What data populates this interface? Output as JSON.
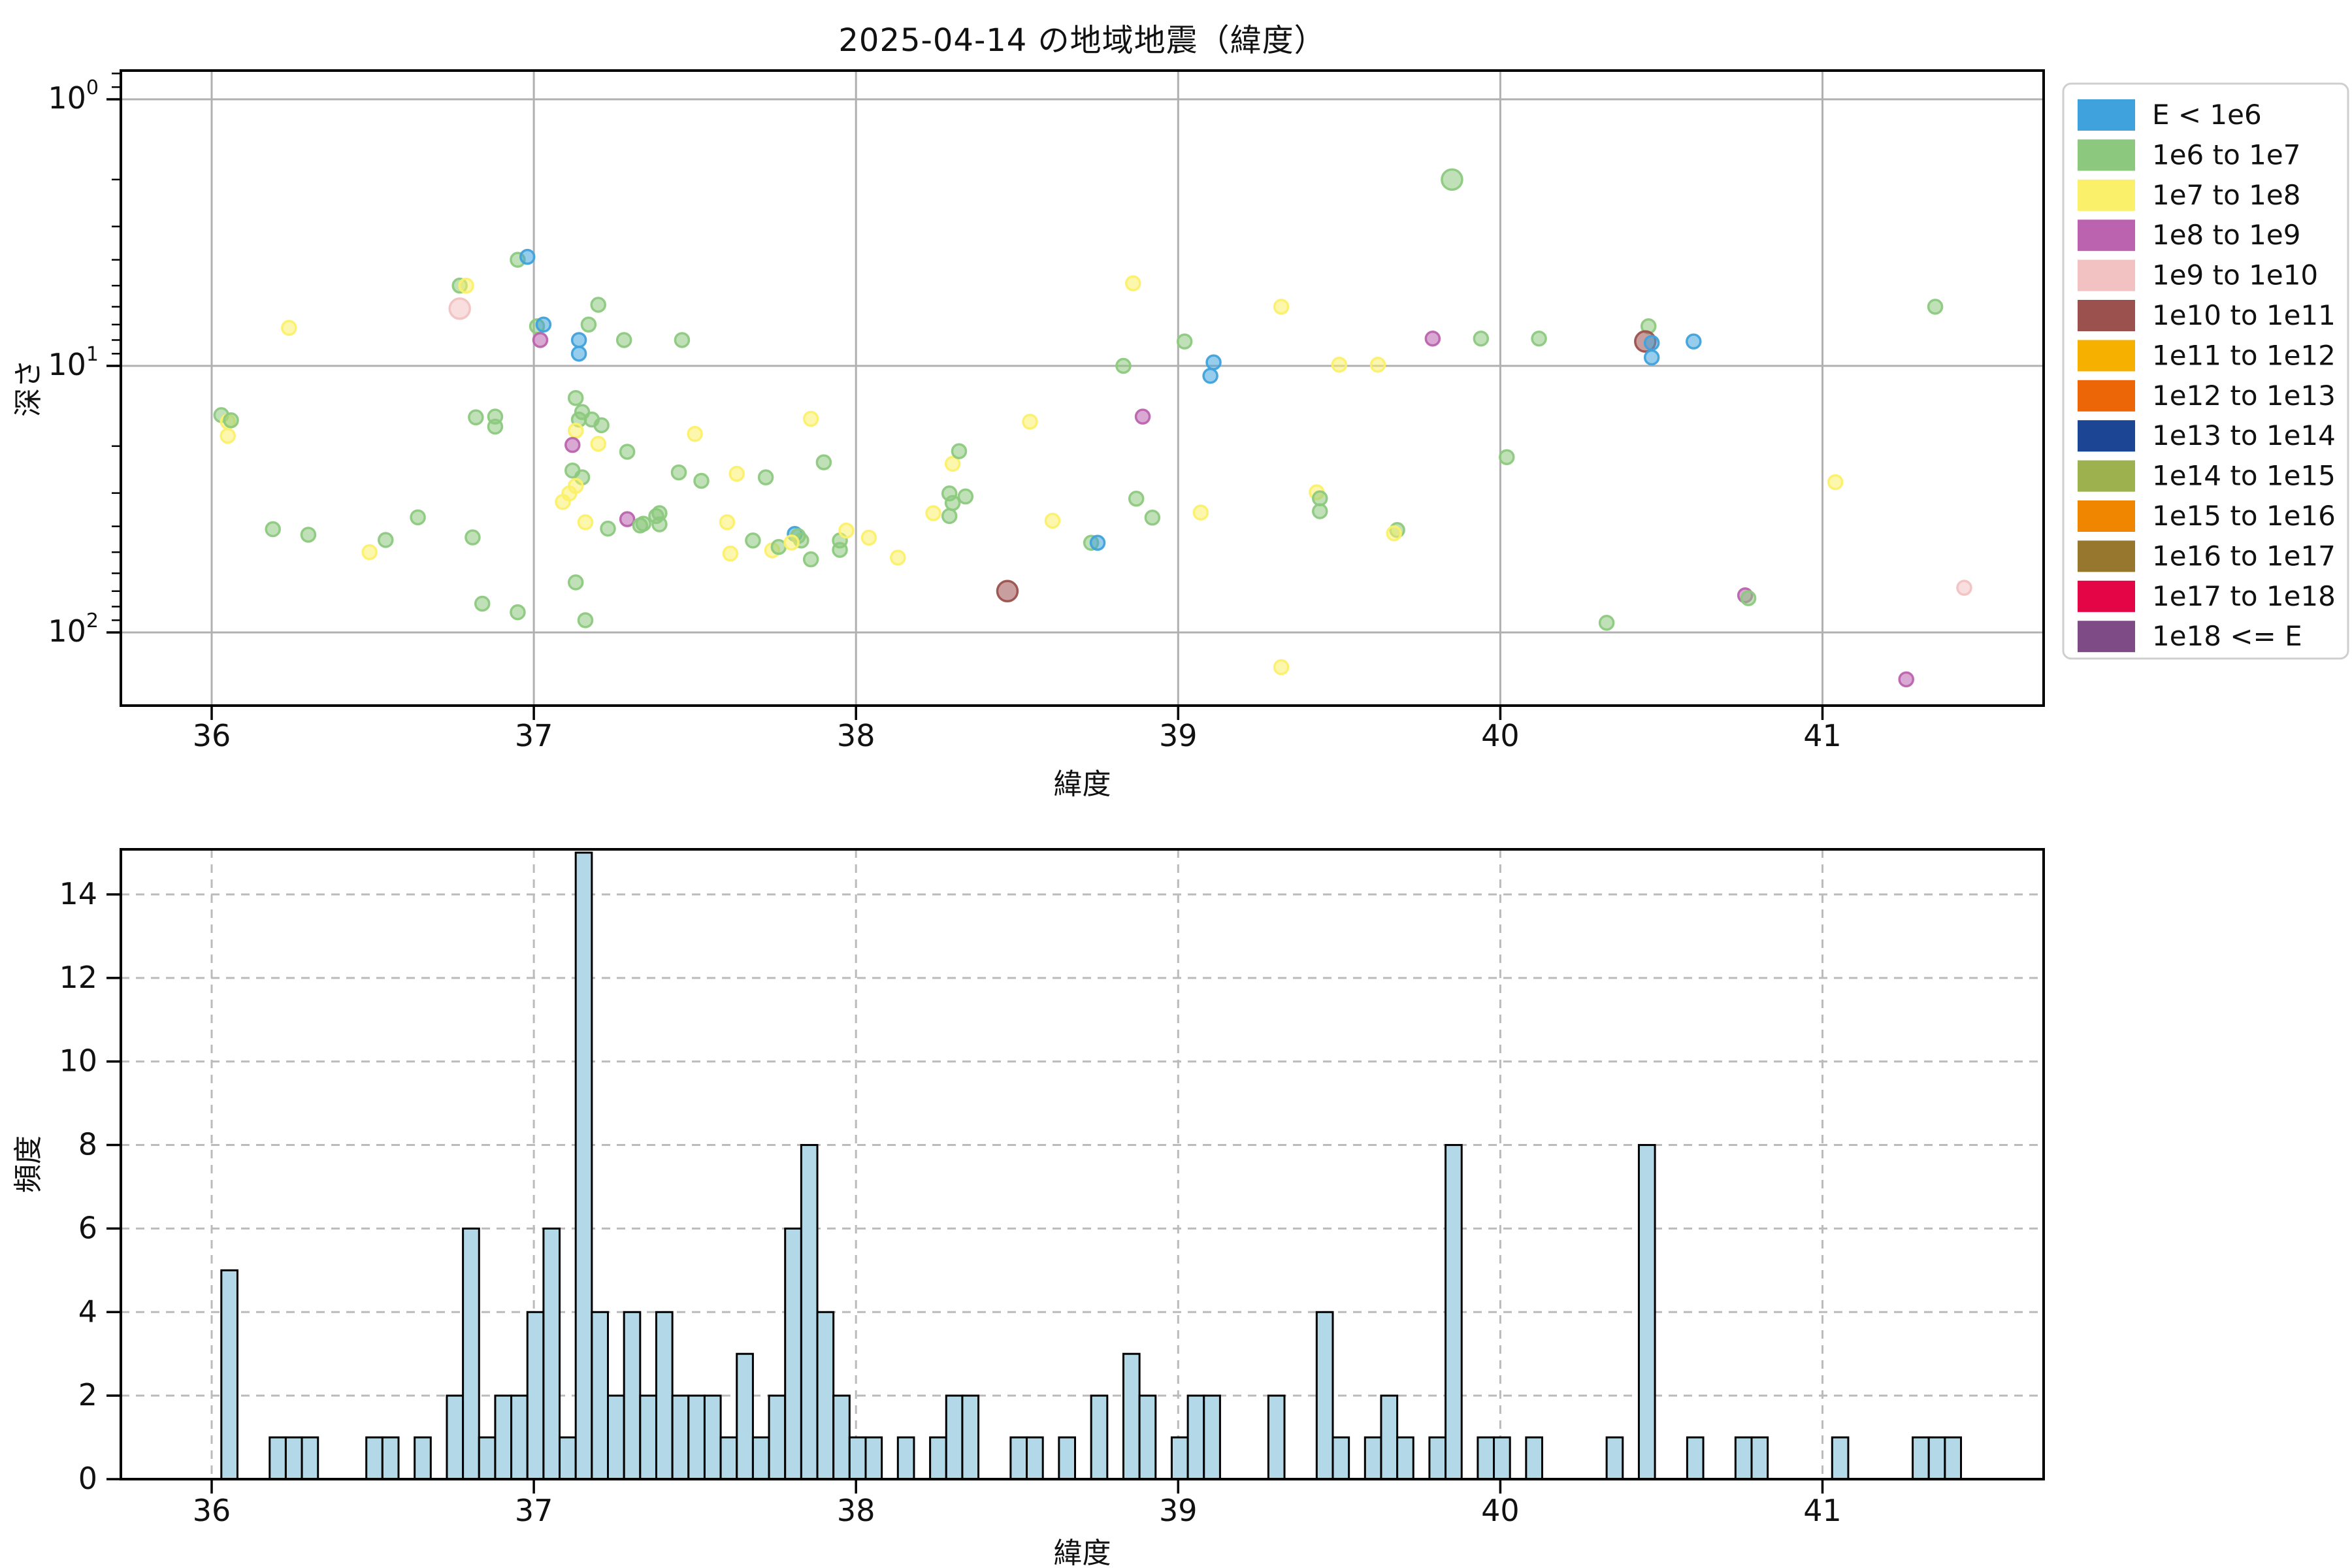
{
  "chart_data": [
    {
      "type": "scatter",
      "title": "2025-04-14 の地域地震（緯度）",
      "xlabel": "緯度",
      "ylabel": "深さ",
      "x_ticks": [
        36,
        37,
        38,
        39,
        40,
        41
      ],
      "y_tick_exponents": [
        0,
        1,
        2
      ],
      "xlim": [
        35.72,
        41.69
      ],
      "ylim_depth_top_to_bottom": [
        0.78,
        183
      ],
      "y_scale": "log-inverted",
      "grid": "solid",
      "points_format": [
        "lat",
        "depth_km",
        "category_index",
        "large_marker"
      ],
      "points": [
        [
          36.03,
          15.3,
          1,
          0
        ],
        [
          36.05,
          16.2,
          2,
          0
        ],
        [
          36.06,
          16.0,
          1,
          0
        ],
        [
          36.05,
          18.3,
          2,
          0
        ],
        [
          36.24,
          7.2,
          2,
          0
        ],
        [
          36.19,
          41,
          1,
          0
        ],
        [
          36.3,
          43,
          1,
          0
        ],
        [
          36.49,
          50,
          2,
          0
        ],
        [
          36.54,
          45,
          1,
          0
        ],
        [
          36.64,
          37,
          1,
          0
        ],
        [
          36.77,
          5.0,
          1,
          0
        ],
        [
          36.79,
          5.0,
          2,
          0
        ],
        [
          36.77,
          6.1,
          4,
          1
        ],
        [
          36.82,
          15.6,
          1,
          0
        ],
        [
          36.88,
          15.5,
          1,
          0
        ],
        [
          36.88,
          16.9,
          1,
          0
        ],
        [
          36.81,
          44,
          1,
          0
        ],
        [
          36.84,
          78,
          1,
          0
        ],
        [
          36.95,
          84,
          1,
          0
        ],
        [
          36.95,
          4.0,
          1,
          0
        ],
        [
          36.98,
          3.9,
          0,
          0
        ],
        [
          37.01,
          7.1,
          1,
          0
        ],
        [
          37.03,
          7.0,
          0,
          0
        ],
        [
          37.02,
          8.0,
          3,
          0
        ],
        [
          37.2,
          5.9,
          1,
          0
        ],
        [
          37.17,
          7.0,
          1,
          0
        ],
        [
          37.14,
          8.0,
          0,
          0
        ],
        [
          37.14,
          9.0,
          0,
          0
        ],
        [
          37.28,
          8.0,
          1,
          0
        ],
        [
          37.46,
          8.0,
          1,
          0
        ],
        [
          37.13,
          13.2,
          1,
          0
        ],
        [
          37.15,
          14.9,
          1,
          0
        ],
        [
          37.14,
          15.9,
          1,
          0
        ],
        [
          37.18,
          15.9,
          1,
          0
        ],
        [
          37.21,
          16.7,
          1,
          0
        ],
        [
          37.13,
          17.5,
          2,
          0
        ],
        [
          37.12,
          19.8,
          3,
          0
        ],
        [
          37.2,
          19.6,
          2,
          0
        ],
        [
          37.29,
          21.0,
          1,
          0
        ],
        [
          37.5,
          18.0,
          2,
          0
        ],
        [
          37.86,
          15.8,
          2,
          0
        ],
        [
          37.9,
          23,
          1,
          0
        ],
        [
          37.45,
          25.1,
          1,
          0
        ],
        [
          37.52,
          27.0,
          1,
          0
        ],
        [
          37.63,
          25.4,
          2,
          0
        ],
        [
          37.72,
          26.2,
          1,
          0
        ],
        [
          37.11,
          30.1,
          2,
          0
        ],
        [
          37.12,
          24.7,
          1,
          0
        ],
        [
          37.15,
          26.2,
          1,
          0
        ],
        [
          37.13,
          28.2,
          2,
          0
        ],
        [
          37.09,
          32.4,
          2,
          0
        ],
        [
          37.16,
          38.6,
          2,
          0
        ],
        [
          37.23,
          40.8,
          1,
          0
        ],
        [
          37.29,
          37.6,
          3,
          0
        ],
        [
          37.33,
          39.7,
          1,
          0
        ],
        [
          37.34,
          39.1,
          1,
          0
        ],
        [
          37.38,
          36.6,
          1,
          0
        ],
        [
          37.39,
          39.3,
          1,
          0
        ],
        [
          37.39,
          35.7,
          1,
          0
        ],
        [
          37.6,
          38.6,
          2,
          0
        ],
        [
          37.61,
          50.6,
          2,
          0
        ],
        [
          37.68,
          45.2,
          1,
          0
        ],
        [
          37.74,
          49.2,
          2,
          0
        ],
        [
          37.76,
          47.8,
          1,
          0
        ],
        [
          37.81,
          42.7,
          0,
          0
        ],
        [
          37.82,
          43.5,
          1,
          0
        ],
        [
          37.83,
          45.2,
          1,
          0
        ],
        [
          37.8,
          46.0,
          2,
          0
        ],
        [
          37.86,
          53.2,
          1,
          0
        ],
        [
          37.95,
          45.2,
          1,
          0
        ],
        [
          37.95,
          49.0,
          1,
          0
        ],
        [
          37.97,
          41.5,
          2,
          0
        ],
        [
          38.04,
          44.1,
          2,
          0
        ],
        [
          38.13,
          52.4,
          2,
          0
        ],
        [
          37.13,
          64.9,
          1,
          0
        ],
        [
          37.16,
          90,
          1,
          0
        ],
        [
          38.47,
          70,
          5,
          1
        ],
        [
          38.54,
          16.2,
          2,
          0
        ],
        [
          38.3,
          23.3,
          2,
          0
        ],
        [
          38.32,
          20.9,
          1,
          0
        ],
        [
          38.34,
          30.9,
          1,
          0
        ],
        [
          38.29,
          30.1,
          1,
          0
        ],
        [
          38.3,
          32.7,
          1,
          0
        ],
        [
          38.24,
          35.7,
          2,
          0
        ],
        [
          38.29,
          36.6,
          1,
          0
        ],
        [
          39.85,
          2.0,
          1,
          1
        ],
        [
          38.86,
          4.9,
          2,
          0
        ],
        [
          39.32,
          6.0,
          2,
          0
        ],
        [
          39.02,
          8.1,
          1,
          0
        ],
        [
          38.83,
          10.0,
          1,
          0
        ],
        [
          39.11,
          9.7,
          0,
          0
        ],
        [
          39.1,
          10.9,
          0,
          0
        ],
        [
          39.5,
          9.9,
          2,
          0
        ],
        [
          39.62,
          9.9,
          2,
          0
        ],
        [
          39.79,
          7.9,
          3,
          0
        ],
        [
          39.94,
          7.9,
          1,
          0
        ],
        [
          40.12,
          7.9,
          1,
          0
        ],
        [
          38.89,
          15.5,
          3,
          0
        ],
        [
          40.02,
          22.0,
          1,
          0
        ],
        [
          39.43,
          29.8,
          2,
          0
        ],
        [
          39.44,
          31.4,
          1,
          0
        ],
        [
          39.44,
          35.1,
          1,
          0
        ],
        [
          39.07,
          35.5,
          2,
          0
        ],
        [
          38.87,
          31.5,
          1,
          0
        ],
        [
          38.92,
          37.1,
          1,
          0
        ],
        [
          38.61,
          38.1,
          2,
          0
        ],
        [
          38.73,
          46.1,
          1,
          0
        ],
        [
          38.75,
          46.1,
          0,
          0
        ],
        [
          39.68,
          41.3,
          1,
          0
        ],
        [
          39.67,
          42.5,
          2,
          0
        ],
        [
          39.32,
          135,
          2,
          0
        ],
        [
          40.46,
          7.1,
          1,
          0
        ],
        [
          40.45,
          8.1,
          5,
          1
        ],
        [
          40.47,
          8.2,
          0,
          0
        ],
        [
          40.47,
          9.3,
          0,
          0
        ],
        [
          40.6,
          8.1,
          0,
          0
        ],
        [
          41.35,
          6.0,
          1,
          0
        ],
        [
          41.04,
          27.3,
          2,
          0
        ],
        [
          40.76,
          72.6,
          3,
          0
        ],
        [
          40.77,
          74.4,
          1,
          0
        ],
        [
          40.33,
          92,
          1,
          0
        ],
        [
          41.44,
          68,
          4,
          0
        ],
        [
          41.26,
          150,
          3,
          0
        ]
      ]
    },
    {
      "type": "bar",
      "xlabel": "緯度",
      "ylabel": "頻度",
      "x_ticks": [
        36,
        37,
        38,
        39,
        40,
        41
      ],
      "y_ticks": [
        0,
        2,
        4,
        6,
        8,
        10,
        12,
        14
      ],
      "ylim": [
        0,
        15.1
      ],
      "grid": "dashed",
      "bin_width": 0.05,
      "bar_color": "#B3D9E8",
      "bar_edge_color": "#000000",
      "bars_format": [
        "bin_start_lat",
        "count"
      ],
      "bars": [
        [
          36.03,
          5
        ],
        [
          36.18,
          1
        ],
        [
          36.23,
          1
        ],
        [
          36.28,
          1
        ],
        [
          36.48,
          1
        ],
        [
          36.53,
          1
        ],
        [
          36.63,
          1
        ],
        [
          36.73,
          2
        ],
        [
          36.78,
          6
        ],
        [
          36.83,
          1
        ],
        [
          36.88,
          2
        ],
        [
          36.93,
          2
        ],
        [
          36.98,
          4
        ],
        [
          37.03,
          6
        ],
        [
          37.08,
          1
        ],
        [
          37.13,
          15
        ],
        [
          37.18,
          4
        ],
        [
          37.23,
          2
        ],
        [
          37.28,
          4
        ],
        [
          37.33,
          2
        ],
        [
          37.38,
          4
        ],
        [
          37.43,
          2
        ],
        [
          37.48,
          2
        ],
        [
          37.53,
          2
        ],
        [
          37.58,
          1
        ],
        [
          37.63,
          3
        ],
        [
          37.68,
          1
        ],
        [
          37.73,
          2
        ],
        [
          37.78,
          6
        ],
        [
          37.83,
          8
        ],
        [
          37.88,
          4
        ],
        [
          37.93,
          2
        ],
        [
          37.98,
          1
        ],
        [
          38.03,
          1
        ],
        [
          38.13,
          1
        ],
        [
          38.23,
          1
        ],
        [
          38.28,
          2
        ],
        [
          38.33,
          2
        ],
        [
          38.48,
          1
        ],
        [
          38.53,
          1
        ],
        [
          38.63,
          1
        ],
        [
          38.73,
          2
        ],
        [
          38.83,
          3
        ],
        [
          38.88,
          2
        ],
        [
          38.98,
          1
        ],
        [
          39.03,
          2
        ],
        [
          39.08,
          2
        ],
        [
          39.28,
          2
        ],
        [
          39.43,
          4
        ],
        [
          39.48,
          1
        ],
        [
          39.58,
          1
        ],
        [
          39.63,
          2
        ],
        [
          39.68,
          1
        ],
        [
          39.78,
          1
        ],
        [
          39.83,
          8
        ],
        [
          39.93,
          1
        ],
        [
          39.98,
          1
        ],
        [
          40.08,
          1
        ],
        [
          40.33,
          1
        ],
        [
          40.43,
          8
        ],
        [
          40.58,
          1
        ],
        [
          40.73,
          1
        ],
        [
          40.78,
          1
        ],
        [
          41.03,
          1
        ],
        [
          41.28,
          1
        ],
        [
          41.33,
          1
        ],
        [
          41.38,
          1
        ]
      ]
    }
  ],
  "legend": {
    "items": [
      {
        "label": "E < 1e6",
        "color": "#3FA2DC"
      },
      {
        "label": "1e6 to 1e7",
        "color": "#8CC97E"
      },
      {
        "label": "1e7 to 1e8",
        "color": "#FBF06A"
      },
      {
        "label": "1e8 to 1e9",
        "color": "#BB63AE"
      },
      {
        "label": "1e9 to 1e10",
        "color": "#F2C2C2"
      },
      {
        "label": "1e10 to 1e11",
        "color": "#9B514E"
      },
      {
        "label": "1e11 to 1e12",
        "color": "#F5B000"
      },
      {
        "label": "1e12 to 1e13",
        "color": "#EC6608"
      },
      {
        "label": "1e13 to 1e14",
        "color": "#1C4693"
      },
      {
        "label": "1e14 to 1e15",
        "color": "#9DB24F"
      },
      {
        "label": "1e15 to 1e16",
        "color": "#F08500"
      },
      {
        "label": "1e16 to 1e17",
        "color": "#97772D"
      },
      {
        "label": "1e17 to 1e18",
        "color": "#E40546"
      },
      {
        "label": "1e18 <= E",
        "color": "#7E4B86"
      }
    ]
  },
  "colors": {
    "grid_solid": "#b0b0b0",
    "grid_dashed": "#bbbbbb",
    "spine": "#000000",
    "text": "#111111",
    "legend_border": "#cfcfcf"
  }
}
